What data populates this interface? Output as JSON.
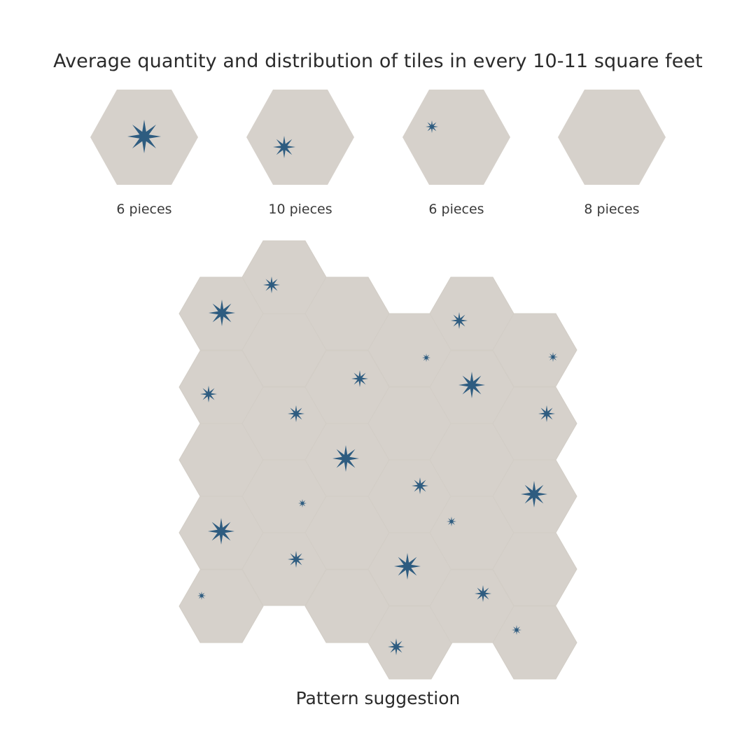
{
  "title": "Average quantity and distribution of tiles in every 10-11 square feet",
  "colors": {
    "tile": "#d6d1cb",
    "star": "#2e5c80",
    "text": "#2b2b2b"
  },
  "tiles": [
    {
      "name": "large-star-tile",
      "quantity": "6 pieces",
      "star_size": "large"
    },
    {
      "name": "medium-star-tile",
      "quantity": "10 pieces",
      "star_size": "medium"
    },
    {
      "name": "small-star-tile",
      "quantity": "6 pieces",
      "star_size": "small"
    },
    {
      "name": "plain-tile",
      "quantity": "8 pieces",
      "star_size": "none"
    }
  ],
  "pattern_caption": "Pattern suggestion"
}
